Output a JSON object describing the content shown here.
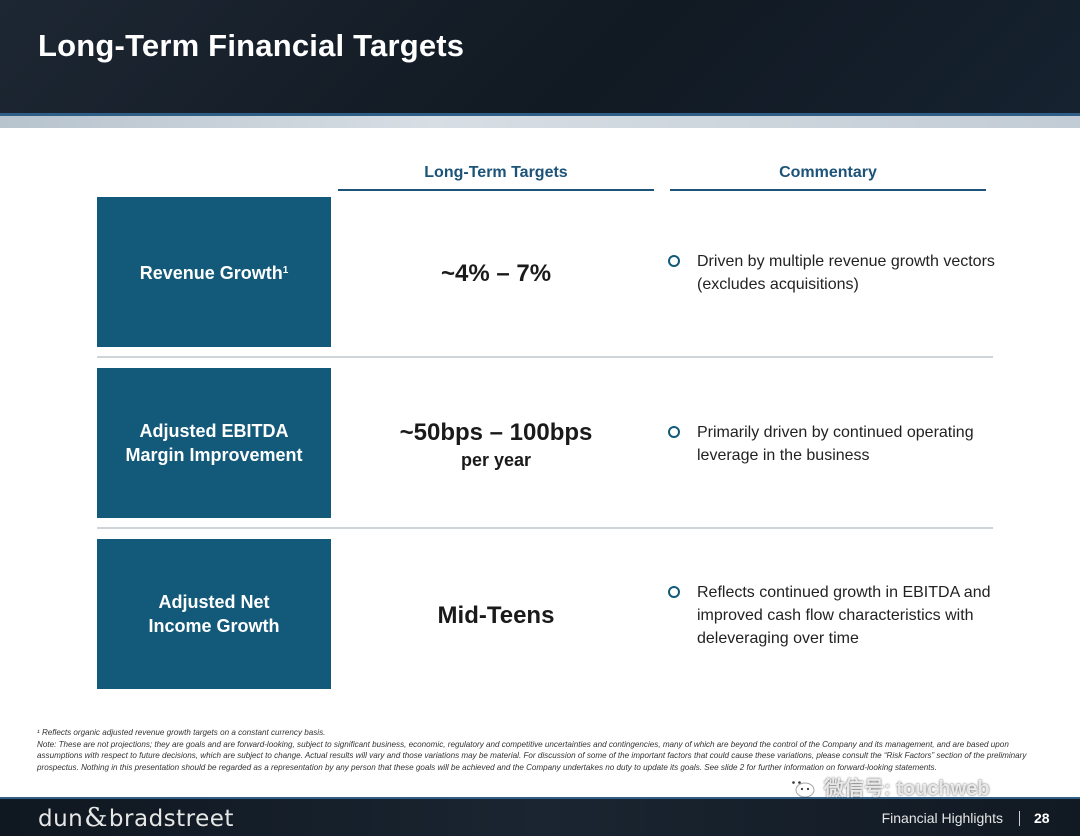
{
  "slide": {
    "title": "Long-Term Financial Targets",
    "footer_section": "Financial Highlights",
    "page_number": "28",
    "logo_left": "dun",
    "logo_amp": "&",
    "logo_right": "bradstreet",
    "watermark": "微信号: touchweb",
    "watermark_icon": "wechat-icon"
  },
  "columns": {
    "targets": "Long-Term Targets",
    "commentary": "Commentary"
  },
  "rows": [
    {
      "metric_lines": [
        "Revenue Growth"
      ],
      "metric_sup": "1",
      "target_main": "~4% – 7%",
      "target_sub": "",
      "commentary": "Driven by multiple revenue growth vectors (excludes acquisitions)"
    },
    {
      "metric_lines": [
        "Adjusted EBITDA",
        "Margin Improvement"
      ],
      "target_main": "~50bps – 100bps",
      "target_sub": "per year",
      "commentary": "Primarily driven by continued operating leverage in the business"
    },
    {
      "metric_lines": [
        "Adjusted Net",
        "Income Growth"
      ],
      "target_main": "Mid-Teens",
      "target_sub": "",
      "commentary": "Reflects continued growth in EBITDA and improved cash flow characteristics with deleveraging over time"
    }
  ],
  "footnotes": {
    "note1": "¹ Reflects organic adjusted revenue growth targets on a constant currency basis.",
    "note2": "Note: These are not projections; they are goals and are forward-looking, subject to significant business, economic, regulatory and competitive uncertainties and contingencies, many of which are beyond the control of the Company and its management, and are based upon assumptions with respect to future decisions, which are subject to change. Actual results will vary and those variations may be material. For discussion of some of the important factors that could cause these variations, please consult the “Risk Factors” section of the preliminary prospectus. Nothing in this presentation should be regarded as a representation by any person that these goals will be achieved and the Company undertakes no duty to update its goals. See slide 2 for further information on forward-looking statements."
  },
  "colors": {
    "accent_box": "#135a7a",
    "heading_blue": "#1c5378"
  }
}
